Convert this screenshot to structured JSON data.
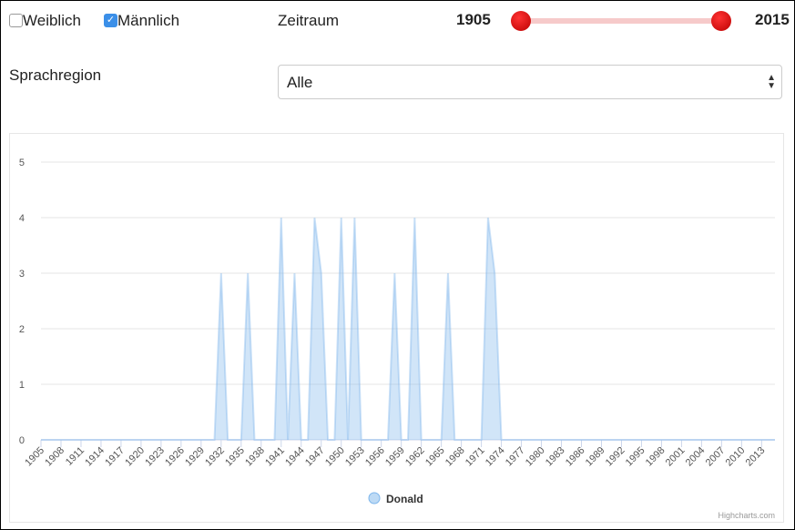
{
  "controls": {
    "gender": [
      {
        "label": "Weiblich",
        "checked": false
      },
      {
        "label": "Männlich",
        "checked": true
      }
    ],
    "period_label": "Zeitraum",
    "period_from": "1905",
    "period_to": "2015",
    "region_label": "Sprachregion",
    "region_value": "Alle"
  },
  "chart_data": {
    "type": "area",
    "x": [
      1905,
      1906,
      1907,
      1908,
      1909,
      1910,
      1911,
      1912,
      1913,
      1914,
      1915,
      1916,
      1917,
      1918,
      1919,
      1920,
      1921,
      1922,
      1923,
      1924,
      1925,
      1926,
      1927,
      1928,
      1929,
      1930,
      1931,
      1932,
      1933,
      1934,
      1935,
      1936,
      1937,
      1938,
      1939,
      1940,
      1941,
      1942,
      1943,
      1944,
      1945,
      1946,
      1947,
      1948,
      1949,
      1950,
      1951,
      1952,
      1953,
      1954,
      1955,
      1956,
      1957,
      1958,
      1959,
      1960,
      1961,
      1962,
      1963,
      1964,
      1965,
      1966,
      1967,
      1968,
      1969,
      1970,
      1971,
      1972,
      1973,
      1974,
      1975,
      1976,
      1977,
      1978,
      1979,
      1980,
      1981,
      1982,
      1983,
      1984,
      1985,
      1986,
      1987,
      1988,
      1989,
      1990,
      1991,
      1992,
      1993,
      1994,
      1995,
      1996,
      1997,
      1998,
      1999,
      2000,
      2001,
      2002,
      2003,
      2004,
      2005,
      2006,
      2007,
      2008,
      2009,
      2010,
      2011,
      2012,
      2013,
      2014,
      2015
    ],
    "series": [
      {
        "name": "Donald",
        "color": "#7cb5ec",
        "values": [
          0,
          0,
          0,
          0,
          0,
          0,
          0,
          0,
          0,
          0,
          0,
          0,
          0,
          0,
          0,
          0,
          0,
          0,
          0,
          0,
          0,
          0,
          0,
          0,
          0,
          0,
          0,
          3,
          0,
          0,
          0,
          3,
          0,
          0,
          0,
          0,
          4,
          0,
          3,
          0,
          0,
          4,
          3,
          0,
          0,
          4,
          0,
          4,
          0,
          0,
          0,
          0,
          0,
          3,
          0,
          0,
          4,
          0,
          0,
          0,
          0,
          3,
          0,
          0,
          0,
          0,
          0,
          4,
          3,
          0,
          0,
          0,
          0,
          0,
          0,
          0,
          0,
          0,
          0,
          0,
          0,
          0,
          0,
          0,
          0,
          0,
          0,
          0,
          0,
          0,
          0,
          0,
          0,
          0,
          0,
          0,
          0,
          0,
          0,
          0,
          0,
          0,
          0,
          0,
          0,
          0,
          0,
          0,
          0,
          0,
          0
        ]
      }
    ],
    "xlim": [
      1905,
      2015
    ],
    "xticks": [
      1905,
      1908,
      1911,
      1914,
      1917,
      1920,
      1923,
      1926,
      1929,
      1932,
      1935,
      1938,
      1941,
      1944,
      1947,
      1950,
      1953,
      1956,
      1959,
      1962,
      1965,
      1968,
      1971,
      1974,
      1977,
      1980,
      1983,
      1986,
      1989,
      1992,
      1995,
      1998,
      2001,
      2004,
      2007,
      2010,
      2013
    ],
    "ylim": [
      0,
      5
    ],
    "yticks": [
      0,
      1,
      2,
      3,
      4,
      5
    ],
    "grid": true,
    "credits": "Highcharts.com"
  }
}
